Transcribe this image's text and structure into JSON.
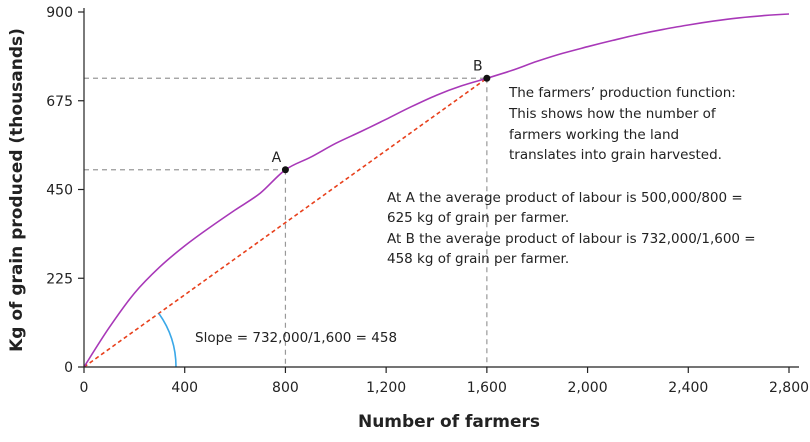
{
  "chart_data": {
    "type": "line",
    "xlabel": "Number of farmers",
    "ylabel": "Kg of grain produced (thousands)",
    "xlim": [
      0,
      2800
    ],
    "ylim": [
      0,
      900
    ],
    "x_ticks": [
      0,
      400,
      800,
      1200,
      1600,
      2000,
      2400,
      2800
    ],
    "x_tick_labels": [
      "0",
      "400",
      "800",
      "1,200",
      "1,600",
      "2,000",
      "2,400",
      "2,800"
    ],
    "y_ticks": [
      0,
      225,
      450,
      675,
      900
    ],
    "y_tick_labels": [
      "0",
      "225",
      "450",
      "675",
      "900"
    ],
    "grid": false,
    "colors": {
      "curve": "#a838b8",
      "slope_line": "#e8401c",
      "angle_arc": "#3aa8e8",
      "guides": "#999999",
      "axes": "#222222"
    },
    "series": [
      {
        "name": "The farmers’ production function",
        "x": [
          0,
          100,
          200,
          300,
          400,
          500,
          600,
          700,
          800,
          900,
          1000,
          1100,
          1200,
          1300,
          1400,
          1500,
          1600,
          1700,
          1800,
          1900,
          2000,
          2100,
          2200,
          2300,
          2400,
          2500,
          2600,
          2700,
          2800
        ],
        "y": [
          0,
          100,
          187,
          253,
          307,
          354,
          398,
          441,
          500,
          532,
          567,
          597,
          628,
          660,
          689,
          713,
          732,
          752,
          775,
          795,
          812,
          828,
          843,
          856,
          867,
          877,
          885,
          891,
          895
        ]
      }
    ],
    "points": [
      {
        "label": "A",
        "x": 800,
        "y": 500
      },
      {
        "label": "B",
        "x": 1600,
        "y": 732
      }
    ],
    "slope_line": {
      "from": [
        0,
        0
      ],
      "to": [
        1600,
        732
      ]
    },
    "annotations": {
      "description": [
        "The farmers’ production function:",
        "This shows how the number of",
        "farmers working the land",
        "translates into grain harvested."
      ],
      "average_product": [
        "At A the average product of labour is 500,000/800 =",
        "625 kg of grain per farmer.",
        "At B the average product of labour is 732,000/1,600 =",
        "458 kg of grain per farmer."
      ],
      "slope": "Slope = 732,000/1,600 = 458"
    }
  }
}
